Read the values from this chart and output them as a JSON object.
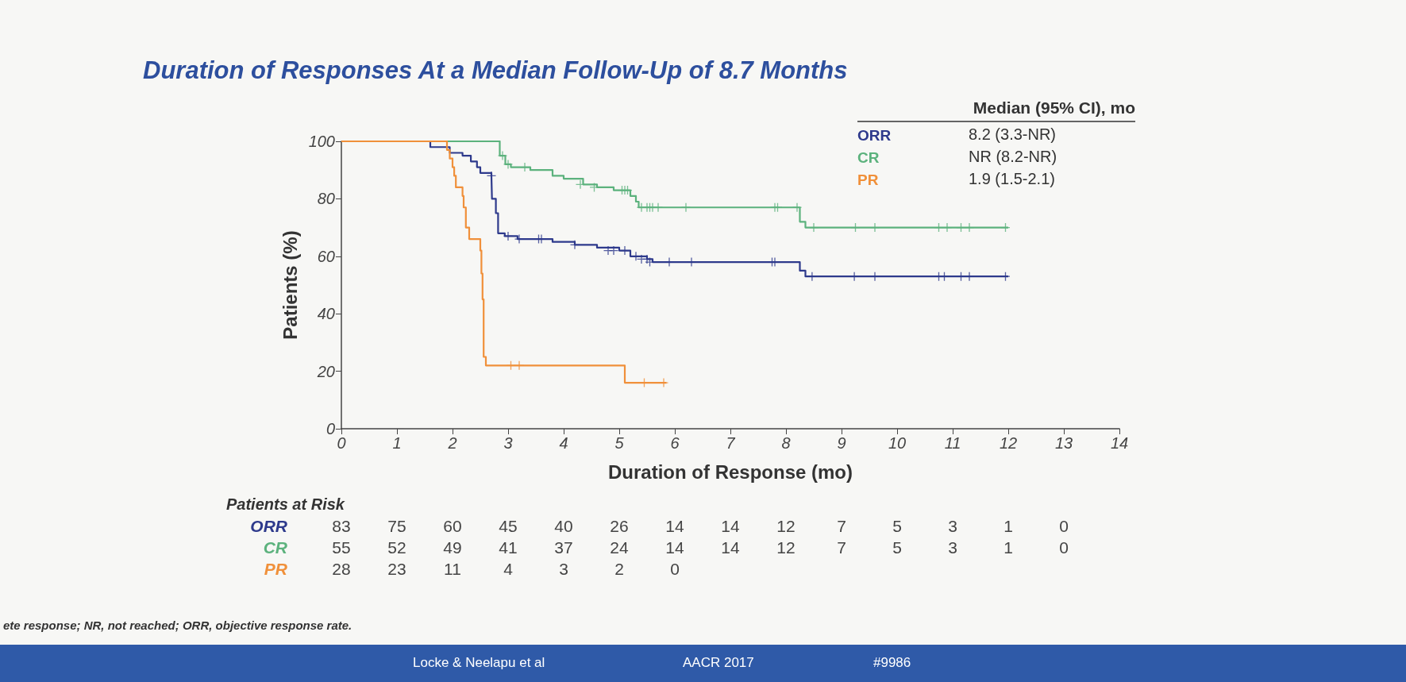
{
  "chart_data": {
    "type": "step",
    "title": "Duration of Responses At a Median Follow-Up of 8.7 Months",
    "xlabel": "Duration of Response (mo)",
    "ylabel": "Patients (%)",
    "legend_title": "Median (95% CI), mo",
    "legend": "top right",
    "grid": false,
    "marker": "none",
    "line_style": "solid",
    "xlim": [
      0,
      14
    ],
    "xticks": [
      0,
      1,
      2,
      3,
      4,
      5,
      6,
      7,
      8,
      9,
      10,
      11,
      12,
      13,
      14
    ],
    "ylim": [
      0,
      100
    ],
    "yticks": [
      0,
      20,
      40,
      60,
      80,
      100
    ],
    "series": [
      {
        "name": "ORR",
        "color": "#2e3a8c",
        "x": [
          0,
          1.6,
          1.95,
          2.18,
          2.33,
          2.44,
          2.5,
          2.7,
          2.71,
          2.78,
          2.82,
          2.94,
          3.17,
          3.8,
          4.2,
          4.6,
          5.0,
          5.2,
          5.5,
          5.6,
          8.25,
          8.35,
          12
        ],
        "values": [
          100,
          98,
          96,
          95,
          93,
          91,
          89,
          88,
          80,
          75,
          68,
          67,
          66,
          65,
          64,
          63,
          62,
          60,
          59,
          58,
          55,
          53,
          53
        ]
      },
      {
        "name": "CR",
        "color": "#5cb27d",
        "x": [
          0,
          2.85,
          2.95,
          3.05,
          3.4,
          3.8,
          4.0,
          4.35,
          4.6,
          4.9,
          5.2,
          5.3,
          5.35,
          8.25,
          8.35,
          12
        ],
        "values": [
          100,
          95,
          92,
          91,
          90,
          88,
          87,
          85,
          84,
          83,
          81,
          79,
          77,
          72,
          70,
          70
        ]
      },
      {
        "name": "PR",
        "color": "#f0903a",
        "x": [
          0,
          1.9,
          1.95,
          2.0,
          2.03,
          2.06,
          2.18,
          2.2,
          2.24,
          2.3,
          2.5,
          2.52,
          2.54,
          2.56,
          2.6,
          5.1,
          5.85
        ],
        "values": [
          100,
          97,
          94,
          91,
          88,
          84,
          81,
          77,
          70,
          66,
          62,
          54,
          45,
          25,
          22,
          16,
          16
        ]
      },
      {
        "type": "scatter",
        "marker": "cross",
        "color": "#2e3a8c",
        "x": [
          2.7,
          3.0,
          3.2,
          3.55,
          3.6,
          4.2,
          4.8,
          4.9,
          5.1,
          5.3,
          5.4,
          5.5,
          5.55,
          5.9,
          6.3,
          7.75,
          7.8,
          8.47,
          9.23,
          9.6,
          10.75,
          10.85,
          11.15,
          11.3,
          11.95
        ],
        "values": [
          88,
          67,
          66,
          66,
          66,
          64,
          62,
          62,
          62,
          60,
          59,
          59,
          58,
          58,
          58,
          58,
          58,
          53,
          53,
          53,
          53,
          53,
          53,
          53,
          53
        ]
      },
      {
        "type": "scatter",
        "marker": "cross",
        "color": "#5cb27d",
        "x": [
          2.9,
          3.0,
          3.3,
          4.3,
          4.55,
          5.05,
          5.1,
          5.15,
          5.4,
          5.5,
          5.55,
          5.6,
          5.7,
          6.2,
          7.8,
          7.85,
          8.2,
          8.5,
          9.25,
          9.6,
          10.75,
          10.9,
          11.15,
          11.3,
          11.95
        ],
        "values": [
          95,
          92,
          91,
          85,
          84,
          83,
          83,
          83,
          77,
          77,
          77,
          77,
          77,
          77,
          77,
          77,
          77,
          70,
          70,
          70,
          70,
          70,
          70,
          70,
          70
        ]
      },
      {
        "type": "scatter",
        "marker": "cross",
        "color": "#f0903a",
        "x": [
          3.05,
          3.2,
          5.45,
          5.8
        ],
        "values": [
          22,
          22,
          16,
          16
        ]
      }
    ],
    "annotations": [
      "8.2 (3.3-NR)",
      "NR (8.2-NR)",
      "1.9 (1.5-2.1)",
      "Patients at Risk",
      "ORR 83 75 60 45 40 26 14 14 12 7 5 3 1 0",
      "CR 55 52 49 41 37 24 14 14 12 7 5 3 1 0",
      "PR 28 23 11 4 3 2 0",
      "ete response; NR, not reached; ORR, objective response rate.",
      "Locke & Neelapu et al",
      "AACR 2017",
      "#9986"
    ]
  }
}
